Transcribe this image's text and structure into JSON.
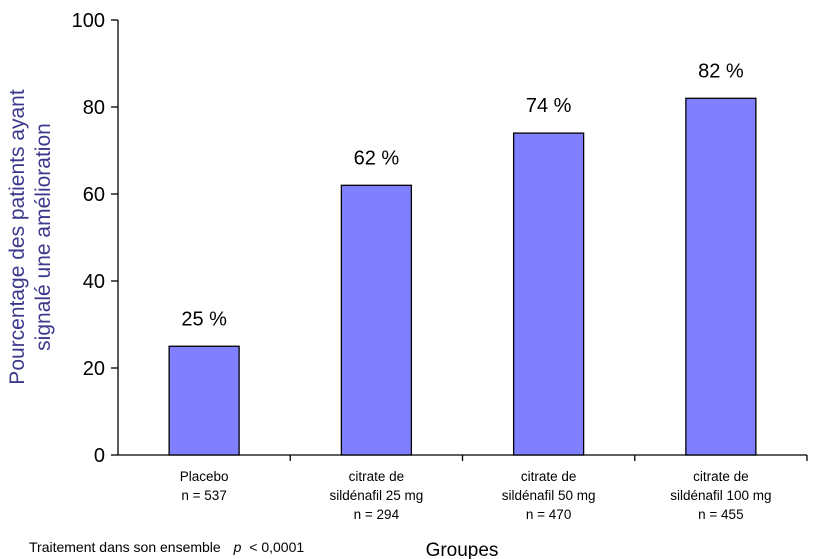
{
  "chart_data": {
    "type": "bar",
    "categories": [
      {
        "lines": [
          "Placebo",
          "n = 537"
        ]
      },
      {
        "lines": [
          "citrate de",
          "sildénafil 25 mg",
          "n = 294"
        ]
      },
      {
        "lines": [
          "citrate de",
          "sildénafil 50 mg",
          "n = 470"
        ]
      },
      {
        "lines": [
          "citrate de",
          "sildénafil 100 mg",
          "n = 455"
        ]
      }
    ],
    "values": [
      25,
      62,
      74,
      82
    ],
    "value_labels": [
      "25 %",
      "62 %",
      "74 %",
      "82 %"
    ],
    "ylabel_lines": [
      "Pourcentage des patients ayant",
      "signalé une amélioration"
    ],
    "xlabel": "Groupes",
    "ylim": [
      0,
      100
    ],
    "yticks": [
      0,
      20,
      40,
      60,
      80,
      100
    ],
    "footnote": {
      "prefix": "Traitement dans son ensemble",
      "p_symbol": "p",
      "p_value": "< 0,0001"
    },
    "colors": {
      "bar_fill": "#8080ff",
      "bar_stroke": "#000000",
      "axis": "#000000",
      "axis_title": "#3d3a8c"
    }
  }
}
